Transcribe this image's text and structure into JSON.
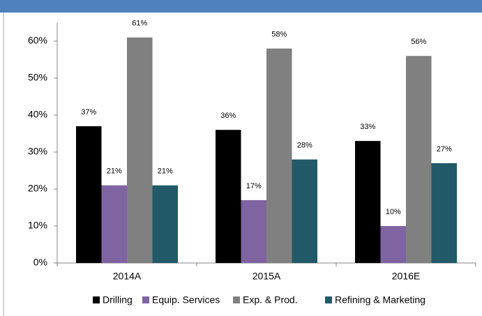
{
  "chart_data": {
    "type": "bar",
    "categories": [
      "2014A",
      "2015A",
      "2016E"
    ],
    "series": [
      {
        "name": "Drilling",
        "color": "#000000",
        "values": [
          37,
          36,
          33
        ],
        "value_labels": [
          "37%",
          "36%",
          "33%"
        ]
      },
      {
        "name": "Equip. Services",
        "color": "#8064a2",
        "values": [
          21,
          17,
          10
        ],
        "value_labels": [
          "21%",
          "17%",
          "10%"
        ]
      },
      {
        "name": "Exp. & Prod.",
        "color": "#808080",
        "values": [
          61,
          58,
          56
        ],
        "value_labels": [
          "61%",
          "58%",
          "56%"
        ]
      },
      {
        "name": "Refining & Marketing",
        "color": "#215968",
        "values": [
          21,
          28,
          27
        ],
        "value_labels": [
          "21%",
          "28%",
          "27%"
        ]
      }
    ],
    "ylim": [
      0,
      65
    ],
    "yticks": [
      {
        "value": 0,
        "label": "0%"
      },
      {
        "value": 10,
        "label": "10%"
      },
      {
        "value": 20,
        "label": "20%"
      },
      {
        "value": 30,
        "label": "30%"
      },
      {
        "value": 40,
        "label": "40%"
      },
      {
        "value": 50,
        "label": "50%"
      },
      {
        "value": 60,
        "label": "60%"
      }
    ],
    "legend": "bottom"
  }
}
